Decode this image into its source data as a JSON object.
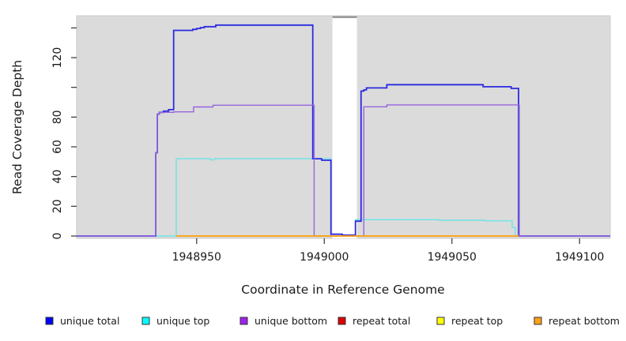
{
  "figure": {
    "xlabel": "Coordinate in Reference Genome",
    "ylabel": "Read Coverage Depth",
    "background_color": "#ffffff",
    "plot_bg_color": "#dbdbdb",
    "plot_border_color": "#c9c9c9",
    "tick_color": "#333333",
    "no_data_band": {
      "x0": 1949003.2,
      "x1": 1949012.8,
      "color": "#ffffff",
      "top_edge_color": "#8c8c8c"
    }
  },
  "axes": {
    "x": {
      "range": [
        1948903,
        1949112
      ],
      "ticks": [
        {
          "value": 1948950,
          "label": "1948950"
        },
        {
          "value": 1949000,
          "label": "1949000"
        },
        {
          "value": 1949050,
          "label": "1949050"
        },
        {
          "value": 1949100,
          "label": "1949100"
        }
      ]
    },
    "y": {
      "range": [
        0,
        150
      ],
      "ticks": [
        {
          "value": 0,
          "label": "0"
        },
        {
          "value": 20,
          "label": "20"
        },
        {
          "value": 40,
          "label": "40"
        },
        {
          "value": 60,
          "label": "60"
        },
        {
          "value": 80,
          "label": "80"
        },
        {
          "value": 100,
          "label": ""
        },
        {
          "value": 120,
          "label": "120"
        },
        {
          "value": 140,
          "label": ""
        }
      ]
    }
  },
  "legend": {
    "items": [
      {
        "label": "unique total",
        "color": "#0000ff"
      },
      {
        "label": "unique top",
        "color": "#00ffff"
      },
      {
        "label": "unique bottom",
        "color": "#a020f0"
      },
      {
        "label": "repeat total",
        "color": "#dd0000"
      },
      {
        "label": "repeat top",
        "color": "#ffff00"
      },
      {
        "label": "repeat bottom",
        "color": "#ffa019"
      }
    ]
  },
  "chart_data": {
    "type": "line",
    "style": "step-coverage",
    "x_unit": "reference genome coordinate",
    "y_unit": "read coverage depth",
    "xlim": [
      1948903,
      1949112
    ],
    "ylim": [
      0,
      150
    ],
    "grid": false,
    "legend_position": "bottom",
    "no_data_region": [
      1949003.2,
      1949012.8
    ],
    "series": [
      {
        "name": "unique top",
        "line_color": "#6fe3e8",
        "points": [
          [
            1948903,
            0
          ],
          [
            1948942,
            0
          ],
          [
            1948942,
            52
          ],
          [
            1948955.5,
            52
          ],
          [
            1948955.5,
            51.2
          ],
          [
            1948957,
            51.2
          ],
          [
            1948957,
            52
          ],
          [
            1949002.6,
            52
          ],
          [
            1949002.6,
            1.2
          ],
          [
            1949007,
            1.2
          ],
          [
            1949007,
            0.6
          ],
          [
            1949012.2,
            0.6
          ],
          [
            1949012.2,
            11
          ],
          [
            1949045,
            11
          ],
          [
            1949045,
            10.6
          ],
          [
            1949063,
            10.6
          ],
          [
            1949063,
            10.2
          ],
          [
            1949073.6,
            10.2
          ],
          [
            1949073.6,
            5.8
          ],
          [
            1949074.8,
            5.8
          ],
          [
            1949074.8,
            0
          ],
          [
            1949112,
            0
          ]
        ]
      },
      {
        "name": "unique total",
        "line_color": "#2b2be0",
        "points": [
          [
            1948903,
            0
          ],
          [
            1948934,
            0
          ],
          [
            1948934,
            56
          ],
          [
            1948934.6,
            56
          ],
          [
            1948934.6,
            82
          ],
          [
            1948935.4,
            82
          ],
          [
            1948935.4,
            83.2
          ],
          [
            1948937,
            83.2
          ],
          [
            1948937,
            84
          ],
          [
            1948939,
            84
          ],
          [
            1948939,
            85
          ],
          [
            1948941,
            85
          ],
          [
            1948941,
            138.3
          ],
          [
            1948948.5,
            138.3
          ],
          [
            1948948.5,
            139
          ],
          [
            1948950,
            139
          ],
          [
            1948950,
            139.6
          ],
          [
            1948951.5,
            139.6
          ],
          [
            1948951.5,
            140.2
          ],
          [
            1948953,
            140.2
          ],
          [
            1948953,
            140.8
          ],
          [
            1948957.5,
            140.8
          ],
          [
            1948957.5,
            141.9
          ],
          [
            1948995.5,
            141.9
          ],
          [
            1948995.5,
            52
          ],
          [
            1948999,
            52
          ],
          [
            1948999,
            51
          ],
          [
            1949002.6,
            51
          ],
          [
            1949002.6,
            1.2
          ],
          [
            1949007,
            1.2
          ],
          [
            1949007,
            0.6
          ],
          [
            1949012.2,
            0.6
          ],
          [
            1949012.2,
            10
          ],
          [
            1949014.4,
            10
          ],
          [
            1949014.4,
            97.5
          ],
          [
            1949015.5,
            97.5
          ],
          [
            1949015.5,
            98.3
          ],
          [
            1949016.5,
            98.3
          ],
          [
            1949016.5,
            99.6
          ],
          [
            1949024.5,
            99.6
          ],
          [
            1949024.5,
            101.8
          ],
          [
            1949062.2,
            101.8
          ],
          [
            1949062.2,
            100.4
          ],
          [
            1949073.2,
            100.4
          ],
          [
            1949073.2,
            99.3
          ],
          [
            1949076.1,
            99.3
          ],
          [
            1949076.1,
            0
          ],
          [
            1949112,
            0
          ]
        ]
      },
      {
        "name": "unique bottom",
        "line_color": "#9765dd",
        "points": [
          [
            1948903,
            0
          ],
          [
            1948934,
            0
          ],
          [
            1948934,
            56
          ],
          [
            1948934.6,
            56
          ],
          [
            1948934.6,
            82
          ],
          [
            1948935.4,
            82
          ],
          [
            1948935.4,
            83.2
          ],
          [
            1948941,
            83.2
          ],
          [
            1948941,
            83.5
          ],
          [
            1948948.8,
            83.5
          ],
          [
            1948948.8,
            86.8
          ],
          [
            1948956.4,
            86.8
          ],
          [
            1948956.4,
            88
          ],
          [
            1948996,
            88
          ],
          [
            1948996,
            0
          ],
          [
            1949015.5,
            0
          ],
          [
            1949015.5,
            86.9
          ],
          [
            1949024.5,
            86.9
          ],
          [
            1949024.5,
            88.2
          ],
          [
            1949076.4,
            88.2
          ],
          [
            1949076.4,
            0
          ],
          [
            1949112,
            0
          ]
        ]
      },
      {
        "name": "repeat total",
        "line_color": "#dd0000",
        "points": [
          [
            1948942,
            0
          ],
          [
            1949076.1,
            0
          ]
        ]
      },
      {
        "name": "repeat top",
        "line_color": "#ffff00",
        "points": [
          [
            1948942,
            0
          ],
          [
            1949076.1,
            0
          ]
        ]
      },
      {
        "name": "repeat bottom",
        "line_color": "#ffa019",
        "points": [
          [
            1948942,
            0
          ],
          [
            1949076.1,
            0
          ]
        ]
      }
    ]
  }
}
